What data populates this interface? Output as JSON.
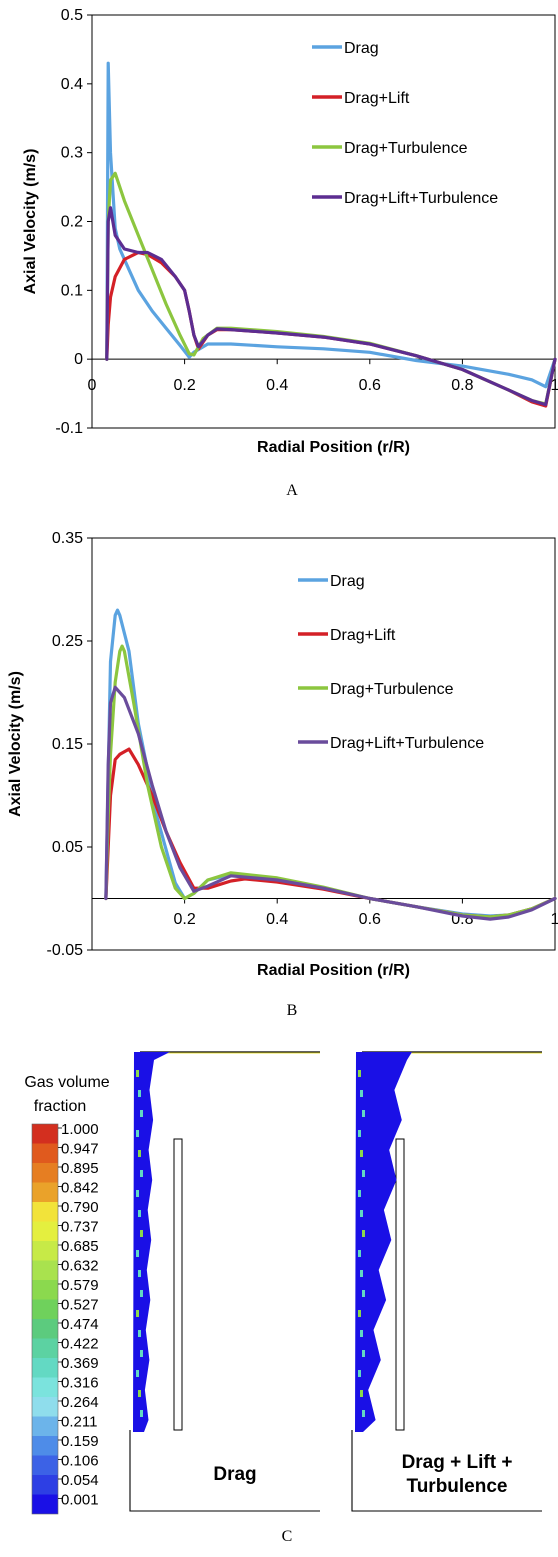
{
  "chart_data": [
    {
      "type": "line",
      "panel_label": "A",
      "xlabel": "Radial Position (r/R)",
      "ylabel": "Axial Velocity (m/s)",
      "xlim": [
        0,
        1
      ],
      "ylim": [
        -0.1,
        0.5
      ],
      "xticks": [
        "0",
        "0.2",
        "0.4",
        "0.6",
        "0.8",
        "1"
      ],
      "yticks": [
        "-0.1",
        "0",
        "0.1",
        "0.2",
        "0.3",
        "0.4",
        "0.5"
      ],
      "legend_position": "top-right",
      "grid": false,
      "series": [
        {
          "name": "Drag",
          "color": "#5BA3E0",
          "x": [
            0.032,
            0.035,
            0.04,
            0.05,
            0.06,
            0.08,
            0.1,
            0.13,
            0.16,
            0.19,
            0.21,
            0.22,
            0.25,
            0.3,
            0.4,
            0.5,
            0.6,
            0.7,
            0.8,
            0.9,
            0.95,
            0.98,
            1.0
          ],
          "y": [
            0.0,
            0.43,
            0.3,
            0.19,
            0.16,
            0.13,
            0.1,
            0.07,
            0.045,
            0.02,
            0.003,
            0.01,
            0.022,
            0.022,
            0.018,
            0.015,
            0.01,
            -0.002,
            -0.01,
            -0.022,
            -0.03,
            -0.04,
            0.0
          ]
        },
        {
          "name": "Drag+Lift",
          "color": "#D42027",
          "x": [
            0.032,
            0.035,
            0.04,
            0.05,
            0.07,
            0.1,
            0.12,
            0.15,
            0.18,
            0.2,
            0.21,
            0.22,
            0.23,
            0.25,
            0.27,
            0.3,
            0.4,
            0.5,
            0.6,
            0.7,
            0.8,
            0.9,
            0.95,
            0.98,
            1.0
          ],
          "y": [
            0.0,
            0.05,
            0.09,
            0.12,
            0.145,
            0.155,
            0.152,
            0.14,
            0.12,
            0.1,
            0.07,
            0.035,
            0.015,
            0.035,
            0.043,
            0.043,
            0.038,
            0.032,
            0.022,
            0.005,
            -0.015,
            -0.045,
            -0.062,
            -0.068,
            0.0
          ]
        },
        {
          "name": "Drag+Turbulence",
          "color": "#8CC63F",
          "x": [
            0.032,
            0.035,
            0.04,
            0.05,
            0.07,
            0.1,
            0.13,
            0.16,
            0.19,
            0.21,
            0.22,
            0.24,
            0.27,
            0.3,
            0.4,
            0.5,
            0.6,
            0.7,
            0.8,
            0.9,
            0.95,
            0.98,
            1.0
          ],
          "y": [
            0.0,
            0.2,
            0.26,
            0.27,
            0.23,
            0.18,
            0.13,
            0.08,
            0.035,
            0.008,
            0.006,
            0.03,
            0.045,
            0.045,
            0.04,
            0.033,
            0.023,
            0.005,
            -0.015,
            -0.045,
            -0.06,
            -0.065,
            0.0
          ]
        },
        {
          "name": "Drag+Lift+Turbulence",
          "color": "#5C2D91",
          "x": [
            0.032,
            0.035,
            0.04,
            0.05,
            0.07,
            0.1,
            0.12,
            0.15,
            0.18,
            0.2,
            0.21,
            0.22,
            0.23,
            0.25,
            0.27,
            0.3,
            0.4,
            0.5,
            0.6,
            0.7,
            0.8,
            0.9,
            0.95,
            0.98,
            1.0
          ],
          "y": [
            0.0,
            0.2,
            0.22,
            0.18,
            0.16,
            0.155,
            0.155,
            0.145,
            0.12,
            0.1,
            0.07,
            0.035,
            0.018,
            0.035,
            0.044,
            0.043,
            0.038,
            0.032,
            0.022,
            0.005,
            -0.015,
            -0.045,
            -0.06,
            -0.066,
            0.0
          ]
        }
      ]
    },
    {
      "type": "line",
      "panel_label": "B",
      "xlabel": "Radial Position (r/R)",
      "ylabel": "Axial Velocity (m/s)",
      "xlim": [
        0,
        1
      ],
      "ylim": [
        -0.05,
        0.35
      ],
      "xticks": [
        "0.2",
        "0.4",
        "0.6",
        "0.8",
        "1"
      ],
      "yticks": [
        "-0.05",
        "0.05",
        "0.15",
        "0.25",
        "0.35"
      ],
      "legend_position": "top-right",
      "grid": false,
      "series": [
        {
          "name": "Drag",
          "color": "#5BA3E0",
          "x": [
            0.03,
            0.035,
            0.04,
            0.05,
            0.055,
            0.06,
            0.08,
            0.1,
            0.14,
            0.18,
            0.2,
            0.22,
            0.25,
            0.3,
            0.4,
            0.5,
            0.6,
            0.7,
            0.8,
            0.86,
            0.9,
            0.95,
            1.0
          ],
          "y": [
            0.0,
            0.12,
            0.23,
            0.275,
            0.28,
            0.275,
            0.24,
            0.17,
            0.08,
            0.015,
            0.0,
            0.005,
            0.018,
            0.023,
            0.018,
            0.01,
            0.0,
            -0.008,
            -0.015,
            -0.017,
            -0.016,
            -0.01,
            0.0
          ]
        },
        {
          "name": "Drag+Lift",
          "color": "#D42027",
          "x": [
            0.03,
            0.04,
            0.05,
            0.06,
            0.08,
            0.1,
            0.13,
            0.16,
            0.19,
            0.22,
            0.25,
            0.3,
            0.33,
            0.4,
            0.5,
            0.6,
            0.7,
            0.8,
            0.86,
            0.9,
            0.95,
            1.0
          ],
          "y": [
            0.0,
            0.1,
            0.135,
            0.14,
            0.145,
            0.13,
            0.1,
            0.065,
            0.035,
            0.01,
            0.01,
            0.017,
            0.019,
            0.016,
            0.009,
            0.0,
            -0.008,
            -0.016,
            -0.018,
            -0.016,
            -0.01,
            0.0
          ]
        },
        {
          "name": "Drag+Turbulence",
          "color": "#8CC63F",
          "x": [
            0.03,
            0.035,
            0.04,
            0.05,
            0.06,
            0.065,
            0.07,
            0.09,
            0.12,
            0.15,
            0.18,
            0.2,
            0.22,
            0.25,
            0.3,
            0.4,
            0.5,
            0.6,
            0.7,
            0.8,
            0.86,
            0.9,
            0.95,
            1.0
          ],
          "y": [
            0.0,
            0.08,
            0.14,
            0.21,
            0.24,
            0.245,
            0.24,
            0.19,
            0.11,
            0.05,
            0.01,
            0.0,
            0.005,
            0.018,
            0.025,
            0.02,
            0.011,
            0.0,
            -0.008,
            -0.016,
            -0.018,
            -0.016,
            -0.01,
            0.0
          ]
        },
        {
          "name": "Drag+Lift+Turbulence",
          "color": "#6A4C9C",
          "x": [
            0.03,
            0.035,
            0.04,
            0.05,
            0.07,
            0.1,
            0.13,
            0.16,
            0.19,
            0.22,
            0.25,
            0.3,
            0.4,
            0.5,
            0.6,
            0.7,
            0.8,
            0.86,
            0.9,
            0.95,
            1.0
          ],
          "y": [
            0.0,
            0.13,
            0.19,
            0.205,
            0.195,
            0.16,
            0.11,
            0.065,
            0.03,
            0.007,
            0.012,
            0.022,
            0.018,
            0.01,
            0.0,
            -0.008,
            -0.017,
            -0.02,
            -0.018,
            -0.011,
            0.0
          ]
        }
      ]
    },
    {
      "type": "heatmap",
      "panel_label": "C",
      "colorbar_title": "Gas volume fraction",
      "colorbar_ticks": [
        "1.000",
        "0.947",
        "0.895",
        "0.842",
        "0.790",
        "0.737",
        "0.685",
        "0.632",
        "0.579",
        "0.527",
        "0.474",
        "0.422",
        "0.369",
        "0.316",
        "0.264",
        "0.211",
        "0.159",
        "0.106",
        "0.054",
        "0.001"
      ],
      "colorbar_colors": [
        "#D32F1F",
        "#E05A1E",
        "#E67E22",
        "#EAA22A",
        "#F2E33A",
        "#E4EF3F",
        "#C7EA47",
        "#A9E24E",
        "#8BD94E",
        "#6FD15C",
        "#5CCB7E",
        "#5CD2A2",
        "#63D9C3",
        "#7BE3DD",
        "#8FDDEC",
        "#6CB4EA",
        "#4E8CE8",
        "#3C62E6",
        "#2D3FE4",
        "#1A10E6"
      ],
      "subplots": [
        "Drag",
        "Drag + Lift + Turbulence"
      ]
    }
  ]
}
